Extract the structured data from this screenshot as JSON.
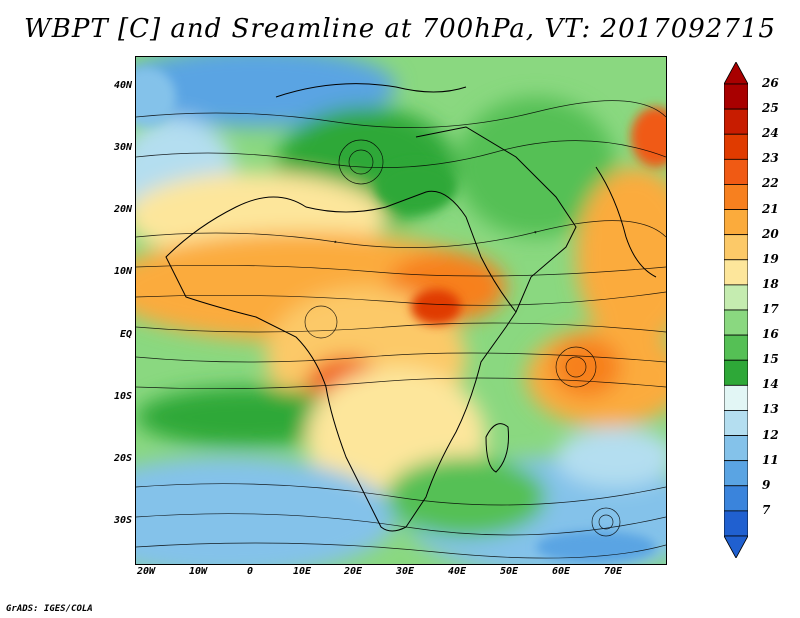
{
  "title": "WBPT [C] and Sreamline at 700hPa, VT: 2017092715",
  "credit": "GrADS: IGES/COLA",
  "lat_labels": [
    "40N",
    "30N",
    "20N",
    "10N",
    "EQ",
    "10S",
    "20S",
    "30S"
  ],
  "lon_labels": [
    "20W",
    "10W",
    "0",
    "10E",
    "20E",
    "30E",
    "40E",
    "50E",
    "60E",
    "70E"
  ],
  "colorbar": {
    "labels": [
      "26",
      "25",
      "24",
      "23",
      "22",
      "21",
      "20",
      "19",
      "18",
      "17",
      "16",
      "15",
      "14",
      "13",
      "12",
      "11",
      "9",
      "7"
    ],
    "colors": [
      "#a80000",
      "#c81c00",
      "#e03b00",
      "#f05a14",
      "#f7801f",
      "#fbab3c",
      "#fcc968",
      "#fde69b",
      "#c5ecb0",
      "#8ad880",
      "#55c055",
      "#2ea838",
      "#e2f6f5",
      "#b4def0",
      "#84c2ea",
      "#5aa4e3",
      "#3a84dc",
      "#2060d0"
    ],
    "top_arrow_color": "#a80000",
    "bottom_arrow_color": "#2060d0"
  }
}
